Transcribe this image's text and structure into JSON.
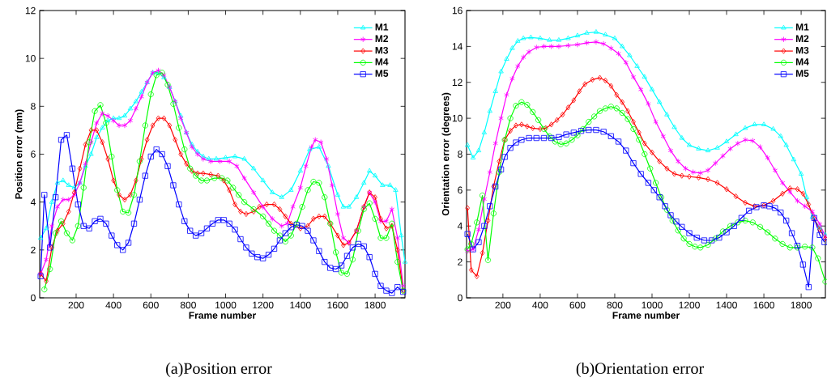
{
  "chart_data": [
    {
      "type": "line",
      "xlabel": "Frame number",
      "ylabel": "Position error (mm)",
      "annotations": [
        "(a)Position error"
      ],
      "xlim": [
        5,
        1960
      ],
      "ylim": [
        0,
        12
      ],
      "xticks": [
        200,
        400,
        600,
        800,
        1000,
        1200,
        1400,
        1600,
        1800
      ],
      "yticks": [
        0,
        2,
        4,
        6,
        8,
        10,
        12
      ],
      "legend": "top right",
      "series": [
        {
          "name": "M1",
          "color": "#00ffff",
          "marker": "triangle",
          "x": [
            10,
            40,
            70,
            100,
            130,
            160,
            190,
            220,
            250,
            280,
            310,
            340,
            370,
            400,
            430,
            460,
            490,
            520,
            550,
            580,
            610,
            640,
            670,
            700,
            730,
            760,
            790,
            820,
            850,
            880,
            910,
            950,
            1000,
            1050,
            1100,
            1150,
            1200,
            1250,
            1300,
            1350,
            1400,
            1450,
            1500,
            1550,
            1600,
            1630,
            1660,
            1700,
            1740,
            1770,
            1800,
            1840,
            1880,
            1910,
            1940,
            1960
          ],
          "values": [
            2.5,
            2.9,
            4.0,
            4.8,
            4.9,
            4.7,
            4.6,
            4.8,
            5.5,
            6.0,
            6.7,
            7.1,
            7.4,
            7.5,
            7.5,
            7.6,
            7.9,
            8.2,
            8.6,
            9.0,
            9.4,
            9.4,
            9.2,
            8.8,
            8.2,
            7.6,
            6.9,
            6.4,
            6.1,
            5.9,
            5.8,
            5.8,
            5.85,
            5.9,
            5.8,
            5.4,
            4.9,
            4.4,
            4.2,
            4.5,
            5.3,
            6.2,
            6.3,
            5.5,
            4.3,
            3.8,
            3.8,
            4.2,
            4.8,
            5.3,
            5.1,
            4.7,
            4.7,
            4.5,
            2.6,
            1.5
          ]
        },
        {
          "name": "M2",
          "color": "#ff00ff",
          "marker": "cross",
          "x": [
            10,
            40,
            70,
            100,
            130,
            160,
            190,
            220,
            250,
            280,
            310,
            340,
            370,
            400,
            430,
            460,
            490,
            520,
            550,
            580,
            610,
            640,
            670,
            700,
            730,
            760,
            790,
            820,
            850,
            880,
            920,
            970,
            1020,
            1060,
            1100,
            1150,
            1200,
            1250,
            1300,
            1330,
            1360,
            1400,
            1430,
            1460,
            1480,
            1510,
            1540,
            1570,
            1600,
            1630,
            1660,
            1700,
            1740,
            1770,
            1800,
            1830,
            1860,
            1890,
            1920,
            1950
          ],
          "values": [
            1.0,
            1.6,
            3.0,
            3.8,
            4.1,
            4.1,
            4.3,
            4.8,
            5.6,
            6.5,
            7.3,
            7.7,
            7.6,
            7.4,
            7.2,
            7.2,
            7.4,
            7.9,
            8.4,
            9.0,
            9.4,
            9.5,
            9.3,
            8.8,
            8.2,
            7.5,
            6.9,
            6.3,
            6.0,
            5.8,
            5.7,
            5.7,
            5.7,
            5.5,
            5.0,
            4.4,
            3.8,
            3.3,
            3.0,
            3.1,
            3.8,
            4.6,
            5.5,
            6.3,
            6.6,
            6.5,
            5.8,
            4.7,
            3.5,
            2.5,
            2.3,
            2.8,
            3.8,
            4.4,
            4.0,
            3.2,
            3.2,
            3.7,
            2.5,
            0.5
          ]
        },
        {
          "name": "M3",
          "color": "#ff0000",
          "marker": "diamond",
          "x": [
            10,
            40,
            70,
            100,
            130,
            160,
            190,
            220,
            250,
            280,
            310,
            340,
            370,
            400,
            430,
            460,
            490,
            520,
            550,
            580,
            610,
            640,
            670,
            700,
            730,
            760,
            790,
            820,
            850,
            880,
            920,
            960,
            990,
            1020,
            1050,
            1080,
            1110,
            1150,
            1180,
            1220,
            1260,
            1290,
            1320,
            1350,
            1400,
            1440,
            1470,
            1500,
            1530,
            1560,
            1600,
            1630,
            1660,
            1700,
            1740,
            1770,
            1800,
            1830,
            1860,
            1890,
            1920,
            1950
          ],
          "values": [
            1.0,
            0.7,
            2.1,
            2.8,
            3.1,
            3.6,
            4.4,
            5.4,
            6.4,
            7.0,
            7.0,
            6.5,
            5.8,
            4.9,
            4.3,
            4.1,
            4.3,
            4.9,
            5.8,
            6.6,
            7.2,
            7.5,
            7.5,
            7.2,
            6.6,
            6.0,
            5.6,
            5.3,
            5.2,
            5.2,
            5.15,
            5.1,
            4.9,
            4.5,
            3.9,
            3.6,
            3.5,
            3.6,
            3.8,
            3.9,
            3.9,
            3.7,
            3.4,
            3.1,
            2.9,
            3.0,
            3.3,
            3.4,
            3.4,
            3.1,
            2.6,
            2.2,
            2.3,
            2.8,
            3.8,
            4.4,
            4.2,
            3.3,
            2.9,
            3.0,
            2.0,
            0.3
          ]
        },
        {
          "name": "M4",
          "color": "#00ff00",
          "marker": "circle",
          "x": [
            30,
            60,
            90,
            120,
            150,
            180,
            210,
            240,
            270,
            300,
            330,
            360,
            390,
            420,
            450,
            480,
            510,
            540,
            570,
            600,
            630,
            660,
            690,
            720,
            750,
            780,
            810,
            840,
            870,
            900,
            940,
            980,
            1010,
            1040,
            1070,
            1100,
            1150,
            1200,
            1230,
            1260,
            1290,
            1320,
            1350,
            1380,
            1410,
            1440,
            1470,
            1500,
            1530,
            1560,
            1590,
            1620,
            1650,
            1680,
            1710,
            1740,
            1770,
            1800,
            1830,
            1860,
            1890,
            1920,
            1950
          ],
          "values": [
            0.35,
            1.2,
            2.7,
            3.2,
            2.7,
            2.4,
            3.0,
            4.6,
            6.5,
            7.8,
            8.05,
            7.3,
            5.9,
            4.5,
            3.6,
            3.55,
            4.3,
            5.7,
            7.2,
            8.5,
            9.3,
            9.4,
            8.9,
            8.1,
            7.1,
            6.2,
            5.4,
            5.1,
            4.9,
            4.9,
            5.0,
            5.0,
            4.9,
            4.6,
            4.3,
            4.0,
            3.7,
            3.4,
            3.1,
            2.8,
            2.6,
            2.35,
            2.6,
            3.1,
            3.8,
            4.5,
            4.85,
            4.8,
            4.2,
            3.1,
            1.9,
            1.05,
            1.0,
            1.6,
            2.8,
            3.7,
            3.95,
            3.3,
            2.5,
            2.5,
            3.1,
            1.5,
            0.3
          ]
        },
        {
          "name": "M5",
          "color": "#0000ff",
          "marker": "square",
          "x": [
            10,
            30,
            60,
            90,
            120,
            150,
            180,
            210,
            240,
            270,
            300,
            330,
            360,
            390,
            420,
            450,
            480,
            510,
            540,
            570,
            600,
            630,
            660,
            690,
            720,
            750,
            780,
            810,
            840,
            870,
            900,
            930,
            960,
            990,
            1020,
            1050,
            1080,
            1110,
            1140,
            1170,
            1200,
            1230,
            1260,
            1290,
            1320,
            1350,
            1380,
            1410,
            1440,
            1470,
            1500,
            1530,
            1560,
            1590,
            1620,
            1650,
            1680,
            1710,
            1740,
            1770,
            1800,
            1830,
            1860,
            1890,
            1920,
            1950
          ],
          "values": [
            0.9,
            4.3,
            2.1,
            4.2,
            6.6,
            6.8,
            5.4,
            3.9,
            3.0,
            2.9,
            3.2,
            3.3,
            3.1,
            2.6,
            2.2,
            2.0,
            2.3,
            3.1,
            4.1,
            5.1,
            5.9,
            6.2,
            6.0,
            5.5,
            4.7,
            3.9,
            3.2,
            2.8,
            2.6,
            2.7,
            2.9,
            3.1,
            3.25,
            3.25,
            3.1,
            2.85,
            2.45,
            2.1,
            1.85,
            1.7,
            1.65,
            1.8,
            2.05,
            2.4,
            2.7,
            2.95,
            3.05,
            3.0,
            2.8,
            2.4,
            1.95,
            1.5,
            1.25,
            1.2,
            1.35,
            1.75,
            2.1,
            2.25,
            2.15,
            1.7,
            1.0,
            0.5,
            0.3,
            0.2,
            0.45,
            0.25
          ]
        }
      ]
    },
    {
      "type": "line",
      "xlabel": "Frame number",
      "ylabel": "Orientation error (degrees)",
      "annotations": [
        "(b)Orientation error"
      ],
      "xlim": [
        5,
        1930
      ],
      "ylim": [
        0,
        16
      ],
      "xticks": [
        200,
        400,
        600,
        800,
        1000,
        1200,
        1400,
        1600,
        1800
      ],
      "yticks": [
        0,
        2,
        4,
        6,
        8,
        10,
        12,
        14,
        16
      ],
      "legend": "top right",
      "series": [
        {
          "name": "M1",
          "color": "#00ffff",
          "marker": "triangle",
          "x": [
            10,
            40,
            70,
            100,
            130,
            160,
            190,
            220,
            250,
            280,
            310,
            350,
            400,
            450,
            500,
            550,
            600,
            650,
            700,
            750,
            800,
            840,
            880,
            920,
            960,
            1000,
            1040,
            1080,
            1120,
            1160,
            1200,
            1250,
            1300,
            1350,
            1400,
            1450,
            1500,
            1550,
            1600,
            1650,
            1690,
            1720,
            1760,
            1800,
            1830,
            1860,
            1900,
            1930
          ],
          "values": [
            8.5,
            7.8,
            8.2,
            9.2,
            10.4,
            11.5,
            12.6,
            13.3,
            13.9,
            14.3,
            14.45,
            14.5,
            14.45,
            14.35,
            14.35,
            14.45,
            14.6,
            14.75,
            14.8,
            14.65,
            14.45,
            14.0,
            13.5,
            12.9,
            12.3,
            11.6,
            10.9,
            10.2,
            9.5,
            8.9,
            8.5,
            8.3,
            8.2,
            8.35,
            8.7,
            9.1,
            9.45,
            9.65,
            9.65,
            9.4,
            9.0,
            8.5,
            7.7,
            6.9,
            5.6,
            4.5,
            3.9,
            3.5
          ]
        },
        {
          "name": "M2",
          "color": "#ff00ff",
          "marker": "cross",
          "x": [
            10,
            40,
            70,
            100,
            130,
            160,
            190,
            220,
            250,
            280,
            310,
            340,
            380,
            420,
            460,
            500,
            550,
            600,
            650,
            700,
            740,
            780,
            820,
            860,
            900,
            940,
            980,
            1020,
            1060,
            1100,
            1140,
            1180,
            1220,
            1260,
            1300,
            1340,
            1380,
            1420,
            1460,
            1500,
            1540,
            1580,
            1620,
            1660,
            1700,
            1740,
            1780,
            1820,
            1860,
            1900,
            1930
          ],
          "values": [
            2.6,
            2.7,
            3.8,
            5.5,
            7.0,
            8.6,
            10.0,
            11.3,
            12.2,
            12.9,
            13.4,
            13.7,
            13.95,
            14.0,
            14.0,
            14.0,
            14.05,
            14.1,
            14.2,
            14.25,
            14.15,
            13.9,
            13.6,
            13.1,
            12.3,
            11.6,
            10.8,
            9.8,
            9.0,
            8.2,
            7.6,
            7.2,
            7.0,
            6.95,
            7.1,
            7.5,
            7.9,
            8.3,
            8.6,
            8.8,
            8.75,
            8.4,
            7.8,
            7.1,
            6.4,
            5.9,
            5.4,
            5.1,
            4.8,
            4.1,
            3.4
          ]
        },
        {
          "name": "M3",
          "color": "#ff0000",
          "marker": "diamond",
          "x": [
            10,
            30,
            60,
            90,
            120,
            150,
            180,
            210,
            240,
            270,
            300,
            330,
            360,
            400,
            430,
            460,
            490,
            520,
            550,
            580,
            610,
            640,
            680,
            720,
            750,
            780,
            810,
            840,
            870,
            900,
            930,
            960,
            1000,
            1040,
            1080,
            1120,
            1160,
            1200,
            1250,
            1300,
            1350,
            1400,
            1450,
            1500,
            1550,
            1600,
            1650,
            1700,
            1740,
            1780,
            1810,
            1840,
            1870,
            1900,
            1930
          ],
          "values": [
            5.0,
            1.55,
            1.2,
            2.5,
            4.3,
            6.2,
            7.6,
            8.8,
            9.3,
            9.6,
            9.65,
            9.55,
            9.45,
            9.4,
            9.45,
            9.65,
            9.9,
            10.2,
            10.6,
            11.0,
            11.5,
            11.9,
            12.15,
            12.25,
            12.1,
            11.8,
            11.3,
            10.9,
            10.4,
            9.8,
            9.2,
            8.6,
            8.1,
            7.6,
            7.2,
            6.9,
            6.8,
            6.75,
            6.7,
            6.6,
            6.4,
            6.05,
            5.65,
            5.3,
            5.1,
            5.15,
            5.4,
            5.8,
            6.1,
            6.05,
            5.8,
            5.2,
            4.4,
            3.8,
            3.3
          ]
        },
        {
          "name": "M4",
          "color": "#00ff00",
          "marker": "circle",
          "x": [
            10,
            30,
            60,
            90,
            120,
            150,
            180,
            210,
            240,
            270,
            300,
            330,
            360,
            390,
            420,
            450,
            480,
            510,
            540,
            570,
            600,
            630,
            660,
            690,
            720,
            750,
            780,
            810,
            840,
            870,
            900,
            930,
            960,
            990,
            1020,
            1050,
            1080,
            1110,
            1140,
            1170,
            1200,
            1230,
            1260,
            1300,
            1340,
            1380,
            1420,
            1460,
            1500,
            1540,
            1580,
            1620,
            1660,
            1700,
            1740,
            1780,
            1820,
            1860,
            1890,
            1930
          ],
          "values": [
            2.7,
            3.0,
            4.2,
            5.7,
            2.1,
            4.7,
            7.0,
            8.8,
            10.0,
            10.7,
            10.9,
            10.75,
            10.35,
            9.9,
            9.4,
            9.0,
            8.7,
            8.55,
            8.6,
            8.8,
            9.05,
            9.4,
            9.8,
            10.1,
            10.4,
            10.55,
            10.65,
            10.55,
            10.3,
            9.95,
            9.4,
            8.8,
            8.0,
            7.2,
            6.4,
            5.6,
            4.9,
            4.3,
            3.75,
            3.3,
            3.0,
            2.85,
            2.8,
            2.95,
            3.3,
            3.7,
            4.0,
            4.2,
            4.3,
            4.2,
            3.95,
            3.65,
            3.3,
            3.0,
            2.8,
            2.8,
            2.85,
            2.8,
            2.2,
            0.9
          ]
        },
        {
          "name": "M5",
          "color": "#0000ff",
          "marker": "square",
          "x": [
            10,
            40,
            70,
            100,
            130,
            160,
            190,
            210,
            240,
            270,
            300,
            340,
            380,
            420,
            460,
            500,
            540,
            580,
            620,
            660,
            700,
            740,
            780,
            820,
            860,
            900,
            940,
            980,
            1010,
            1040,
            1070,
            1100,
            1130,
            1160,
            1200,
            1240,
            1280,
            1320,
            1360,
            1400,
            1440,
            1480,
            1520,
            1560,
            1600,
            1630,
            1660,
            1690,
            1720,
            1750,
            1780,
            1810,
            1840,
            1870,
            1900,
            1925
          ],
          "values": [
            3.55,
            2.7,
            3.1,
            4.0,
            5.1,
            6.2,
            7.15,
            7.85,
            8.35,
            8.65,
            8.8,
            8.9,
            8.9,
            8.9,
            8.9,
            8.95,
            9.1,
            9.2,
            9.3,
            9.35,
            9.35,
            9.25,
            9.0,
            8.7,
            8.2,
            7.5,
            6.9,
            6.4,
            6.0,
            5.6,
            5.1,
            4.6,
            4.25,
            3.95,
            3.6,
            3.35,
            3.2,
            3.2,
            3.35,
            3.65,
            4.0,
            4.45,
            4.85,
            5.05,
            5.15,
            5.1,
            5.0,
            4.75,
            4.3,
            3.6,
            2.9,
            1.85,
            0.6,
            4.45,
            3.5,
            3.1
          ]
        }
      ]
    }
  ]
}
